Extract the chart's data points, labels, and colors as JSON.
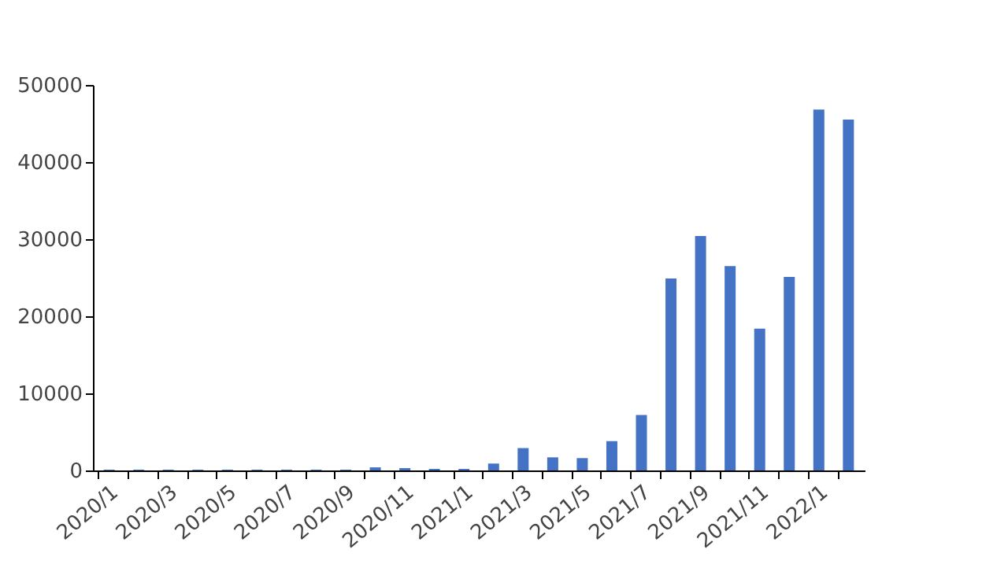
{
  "chart_data": {
    "type": "bar",
    "categories": [
      "2020/1",
      null,
      "2020/3",
      null,
      "2020/5",
      null,
      "2020/7",
      null,
      "2020/9",
      null,
      "2020/11",
      null,
      "2021/1",
      null,
      "2021/3",
      null,
      "2021/5",
      null,
      "2021/7",
      null,
      "2021/9",
      null,
      "2021/11",
      null,
      "2022/1",
      null
    ],
    "values": [
      100,
      100,
      100,
      100,
      100,
      100,
      100,
      100,
      100,
      400,
      300,
      200,
      200,
      900,
      2900,
      1700,
      1600,
      3800,
      7200,
      24900,
      30400,
      26500,
      18400,
      25100,
      46800,
      45500
    ],
    "color": "#4472c4",
    "ylim": [
      0,
      50000
    ],
    "yticks": [
      0,
      10000,
      20000,
      30000,
      40000,
      50000
    ],
    "grid": false
  }
}
